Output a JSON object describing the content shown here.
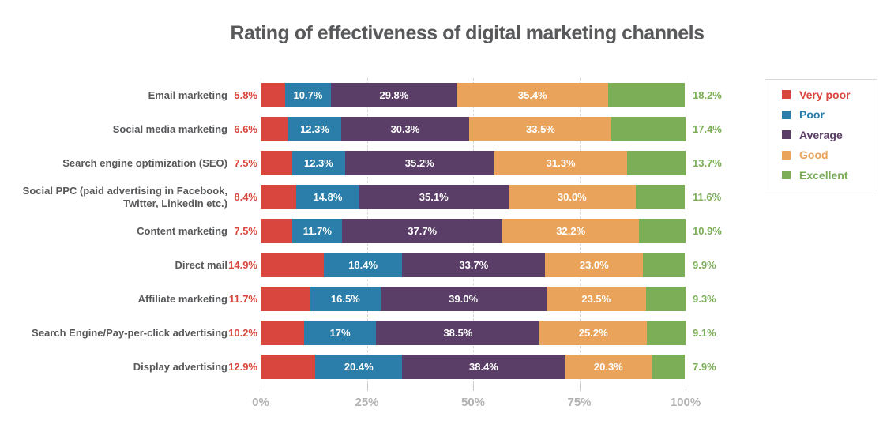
{
  "title": "Rating of effectiveness of digital marketing channels",
  "colors": {
    "title_text": "#58595b",
    "category_text": "#58595b",
    "axis_text": "#b3b3b3",
    "grid_solid": "#cfcfcf",
    "grid_dashed": "#d4d4d4",
    "legend_border": "#dadada",
    "background": "#ffffff"
  },
  "chart_data": {
    "type": "bar",
    "subtype": "stacked-horizontal",
    "title": "Rating of effectiveness of digital marketing channels",
    "categories": [
      "Email marketing",
      "Social media marketing",
      "Search engine optimization (SEO)",
      "Social PPC (paid advertising in Facebook, Twitter, LinkedIn etc.)",
      "Content marketing",
      "Direct mail",
      "Affiliate marketing",
      "Search Engine/Pay-per-click advertising",
      "Display advertising"
    ],
    "series": [
      {
        "name": "Very poor",
        "color": "#d8463e",
        "label_position": "outside-left",
        "values": [
          5.8,
          6.6,
          7.5,
          8.4,
          7.5,
          14.9,
          11.7,
          10.2,
          12.9
        ],
        "labels": [
          "5.8%",
          "6.6%",
          "7.5%",
          "8.4%",
          "7.5%",
          "14.9%",
          "11.7%",
          "10.2%",
          "12.9%"
        ]
      },
      {
        "name": "Poor",
        "color": "#2a7ea9",
        "label_position": "inside",
        "values": [
          10.7,
          12.3,
          12.3,
          14.8,
          11.7,
          18.4,
          16.5,
          17,
          20.4
        ],
        "labels": [
          "10.7%",
          "12.3%",
          "12.3%",
          "14.8%",
          "11.7%",
          "18.4%",
          "16.5%",
          "17%",
          "20.4%"
        ]
      },
      {
        "name": "Average",
        "color": "#5b3e67",
        "label_position": "inside",
        "values": [
          29.8,
          30.3,
          35.2,
          35.1,
          37.7,
          33.7,
          39.0,
          38.5,
          38.4
        ],
        "labels": [
          "29.8%",
          "30.3%",
          "35.2%",
          "35.1%",
          "37.7%",
          "33.7%",
          "39.0%",
          "38.5%",
          "38.4%"
        ]
      },
      {
        "name": "Good",
        "color": "#e9a35a",
        "label_position": "inside",
        "values": [
          35.4,
          33.5,
          31.3,
          30.0,
          32.2,
          23.0,
          23.5,
          25.2,
          20.3
        ],
        "labels": [
          "35.4%",
          "33.5%",
          "31.3%",
          "30.0%",
          "32.2%",
          "23.0%",
          "23.5%",
          "25.2%",
          "20.3%"
        ]
      },
      {
        "name": "Excellent",
        "color": "#7cae58",
        "label_position": "outside-right",
        "values": [
          18.2,
          17.4,
          13.7,
          11.6,
          10.9,
          9.9,
          9.3,
          9.1,
          7.9
        ],
        "labels": [
          "18.2%",
          "17.4%",
          "13.7%",
          "11.6%",
          "10.9%",
          "9.9%",
          "9.3%",
          "9.1%",
          "7.9%"
        ]
      }
    ],
    "x_axis": {
      "range": [
        0,
        100
      ],
      "ticks": [
        {
          "label": "0%",
          "value": 0,
          "style": "solid"
        },
        {
          "label": "25%",
          "value": 25,
          "style": "dashed"
        },
        {
          "label": "50%",
          "value": 50,
          "style": "dashed"
        },
        {
          "label": "75%",
          "value": 75,
          "style": "dashed"
        },
        {
          "label": "100%",
          "value": 100,
          "style": "solid"
        }
      ]
    },
    "legend": {
      "position": "right",
      "entries": [
        "Very poor",
        "Poor",
        "Average",
        "Good",
        "Excellent"
      ]
    },
    "grid": "vertical"
  }
}
